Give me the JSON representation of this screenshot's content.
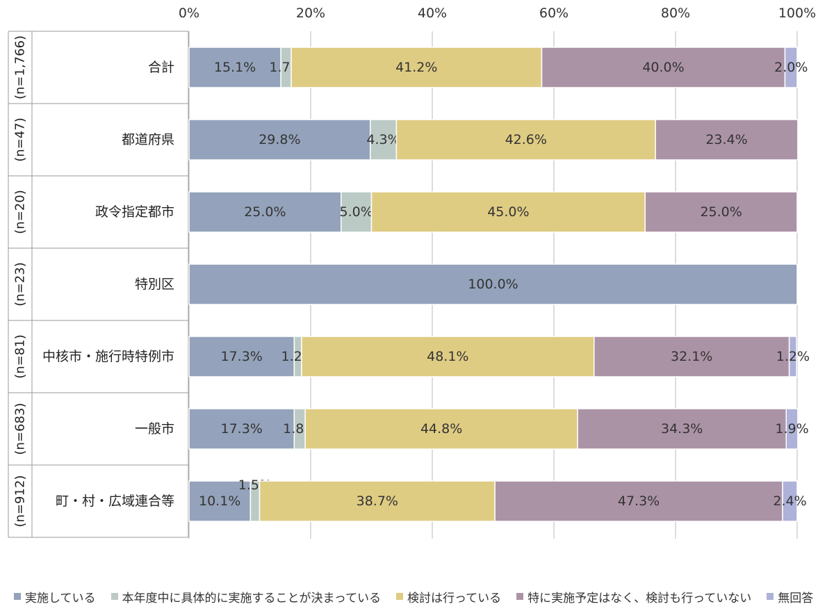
{
  "chart_data": {
    "type": "bar",
    "orientation": "horizontal",
    "stacked": true,
    "xlim": [
      0,
      100
    ],
    "x_ticks": [
      "0%",
      "20%",
      "40%",
      "60%",
      "80%",
      "100%"
    ],
    "x_tick_values": [
      0,
      20,
      40,
      60,
      80,
      100
    ],
    "grid": true,
    "legend_position": "bottom",
    "categories": [
      {
        "label": "合計",
        "n": "(n=1,766)"
      },
      {
        "label": "都道府県",
        "n": "(n=47)"
      },
      {
        "label": "政令指定都市",
        "n": "(n=20)"
      },
      {
        "label": "特別区",
        "n": "(n=23)"
      },
      {
        "label": "中核市・施行時特例市",
        "n": "(n=81)"
      },
      {
        "label": "一般市",
        "n": "(n=683)"
      },
      {
        "label": "町・村・広域連合等",
        "n": "(n=912)"
      }
    ],
    "series": [
      {
        "name": "実施している",
        "color": "#94a3bb",
        "values": [
          15.1,
          29.8,
          25.0,
          100.0,
          17.3,
          17.3,
          10.1
        ],
        "labels": [
          "15.1%",
          "29.8%",
          "25.0%",
          "100.0%",
          "17.3%",
          "17.3%",
          "10.1%"
        ]
      },
      {
        "name": "本年度中に具体的に実施することが決まっている",
        "color": "#bccac5",
        "values": [
          1.7,
          4.3,
          5.0,
          0,
          1.2,
          1.8,
          1.5
        ],
        "labels": [
          "1.7%",
          "4.3%",
          "5.0%",
          "",
          "1.2%",
          "1.8%",
          "1.5%"
        ]
      },
      {
        "name": "検討は行っている",
        "color": "#dfcc83",
        "values": [
          41.2,
          42.6,
          45.0,
          0,
          48.1,
          44.8,
          38.7
        ],
        "labels": [
          "41.2%",
          "42.6%",
          "45.0%",
          "",
          "48.1%",
          "44.8%",
          "38.7%"
        ]
      },
      {
        "name": "特に実施予定はなく、検討も行っていない",
        "color": "#ab93a6",
        "values": [
          40.0,
          23.4,
          25.0,
          0,
          32.1,
          34.3,
          47.3
        ],
        "labels": [
          "40.0%",
          "23.4%",
          "25.0%",
          "",
          "32.1%",
          "34.3%",
          "47.3%"
        ]
      },
      {
        "name": "無回答",
        "color": "#aeb1d8",
        "values": [
          2.0,
          0,
          0,
          0,
          1.2,
          1.9,
          2.4
        ],
        "labels": [
          "2.0%",
          "",
          "",
          "",
          "1.2%",
          "1.9%",
          "2.4%"
        ]
      }
    ]
  }
}
